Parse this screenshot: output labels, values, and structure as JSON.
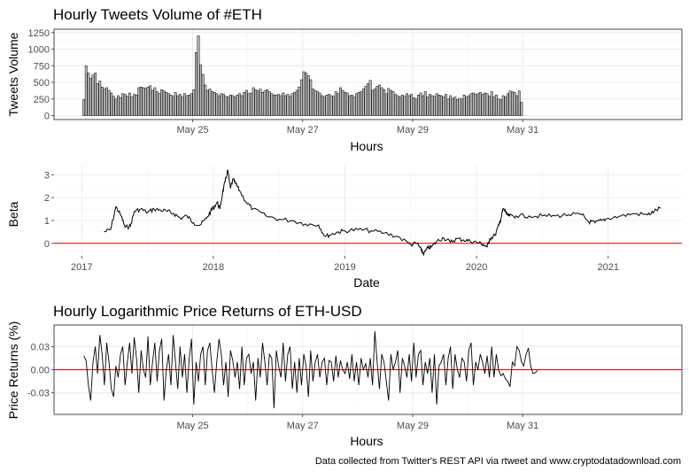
{
  "caption": "Data collected from Twitter's REST API via rtweet and www.cryptodatadownload.com",
  "colors": {
    "bar_fill": "#bebebe",
    "line": "#000000",
    "reference_line": "#cc0000",
    "panel_border": "#333333",
    "grid": "#ebebeb"
  },
  "chart_data": [
    {
      "type": "bar",
      "title": "Hourly Tweets Volume of #ETH",
      "xlabel": "Hours",
      "ylabel": "Tweets Volume",
      "x_tick_labels": [
        "May 25",
        "May 27",
        "May 29",
        "May 31"
      ],
      "x_tick_hours": [
        47.5,
        95.5,
        143.5,
        191.5
      ],
      "y_ticks": [
        0,
        250,
        500,
        750,
        1000,
        1250
      ],
      "ylim": [
        -60,
        1300
      ],
      "xlim": [
        -13,
        261
      ],
      "grid": true,
      "x_unit": "hour index (May 23 06:00 = 0)",
      "values": [
        240,
        750,
        640,
        560,
        610,
        640,
        480,
        520,
        430,
        400,
        420,
        380,
        340,
        290,
        250,
        300,
        270,
        330,
        320,
        290,
        340,
        280,
        320,
        310,
        420,
        430,
        420,
        410,
        430,
        450,
        380,
        420,
        360,
        330,
        390,
        370,
        350,
        330,
        310,
        290,
        350,
        300,
        320,
        280,
        330,
        300,
        310,
        330,
        390,
        950,
        1200,
        760,
        620,
        460,
        380,
        400,
        360,
        350,
        330,
        300,
        330,
        320,
        290,
        280,
        310,
        300,
        280,
        310,
        330,
        300,
        350,
        380,
        330,
        340,
        420,
        390,
        370,
        400,
        350,
        370,
        390,
        360,
        330,
        310,
        310,
        320,
        300,
        340,
        300,
        320,
        290,
        330,
        350,
        380,
        430,
        540,
        660,
        640,
        600,
        540,
        400,
        380,
        360,
        340,
        300,
        280,
        310,
        320,
        300,
        290,
        360,
        330,
        420,
        380,
        350,
        340,
        300,
        310,
        280,
        330,
        350,
        360,
        400,
        440,
        480,
        530,
        380,
        400,
        440,
        460,
        420,
        390,
        330,
        410,
        380,
        360,
        320,
        300,
        280,
        310,
        290,
        330,
        300,
        320,
        270,
        250,
        310,
        340,
        300,
        360,
        280,
        320,
        300,
        290,
        330,
        310,
        300,
        280,
        320,
        250,
        300,
        260,
        280,
        240,
        260,
        250,
        310,
        280,
        300,
        330,
        340,
        320,
        330,
        350,
        320,
        340,
        330,
        290,
        360,
        280,
        310,
        250,
        240,
        300,
        280,
        330,
        370,
        360,
        350,
        300,
        370,
        200
      ]
    },
    {
      "type": "line",
      "xlabel": "Date",
      "ylabel": "Beta",
      "x_tick_labels": [
        "2017",
        "2018",
        "2019",
        "2020",
        "2021"
      ],
      "x_ticks": [
        2017,
        2018,
        2019,
        2020,
        2021
      ],
      "y_ticks": [
        0,
        1,
        2,
        3
      ],
      "ylim": [
        -0.55,
        3.4
      ],
      "xlim": [
        2016.79,
        2021.56
      ],
      "reference_line_y": 0,
      "grid": true,
      "x": [
        2017.17,
        2017.22,
        2017.26,
        2017.3,
        2017.33,
        2017.37,
        2017.4,
        2017.45,
        2017.5,
        2017.55,
        2017.6,
        2017.65,
        2017.7,
        2017.75,
        2017.8,
        2017.85,
        2017.9,
        2017.95,
        2017.98,
        2018.0,
        2018.03,
        2018.05,
        2018.07,
        2018.09,
        2018.11,
        2018.13,
        2018.15,
        2018.17,
        2018.2,
        2018.25,
        2018.3,
        2018.4,
        2018.5,
        2018.6,
        2018.7,
        2018.8,
        2018.85,
        2018.9,
        2018.95,
        2019.0,
        2019.1,
        2019.2,
        2019.3,
        2019.4,
        2019.5,
        2019.55,
        2019.58,
        2019.6,
        2019.63,
        2019.66,
        2019.7,
        2019.75,
        2019.8,
        2019.85,
        2019.9,
        2019.95,
        2020.0,
        2020.05,
        2020.08,
        2020.1,
        2020.14,
        2020.17,
        2020.19,
        2020.2,
        2020.22,
        2020.23,
        2020.25,
        2020.3,
        2020.4,
        2020.5,
        2020.6,
        2020.7,
        2020.8,
        2020.85,
        2020.9,
        2020.95,
        2021.0,
        2021.1,
        2021.2,
        2021.3,
        2021.35,
        2021.4
      ],
      "y": [
        0.5,
        0.6,
        1.6,
        1.2,
        0.7,
        0.75,
        1.4,
        1.5,
        1.35,
        1.5,
        1.45,
        1.4,
        1.3,
        1.1,
        1.2,
        0.9,
        0.8,
        1.1,
        1.4,
        1.55,
        1.8,
        1.5,
        2.2,
        2.7,
        3.2,
        2.4,
        2.8,
        2.6,
        2.3,
        1.8,
        1.5,
        1.2,
        1.05,
        1.0,
        0.85,
        0.8,
        0.3,
        0.4,
        0.5,
        0.55,
        0.6,
        0.55,
        0.45,
        0.3,
        -0.05,
        0.0,
        -0.3,
        -0.45,
        -0.2,
        -0.15,
        0.1,
        0.25,
        0.05,
        0.2,
        0.15,
        0.1,
        0.05,
        -0.05,
        -0.15,
        0.2,
        0.35,
        0.8,
        1.2,
        1.5,
        1.4,
        1.25,
        1.2,
        1.2,
        1.2,
        1.2,
        1.2,
        1.25,
        1.25,
        0.95,
        0.9,
        1.0,
        1.1,
        1.2,
        1.3,
        1.25,
        1.4,
        1.55
      ]
    },
    {
      "type": "line",
      "title": "Hourly Logarithmic Price Returns of ETH-USD",
      "xlabel": "Hours",
      "ylabel": "Price Returns (%)",
      "x_tick_labels": [
        "May 25",
        "May 27",
        "May 29",
        "May 31"
      ],
      "x_tick_hours": [
        47.5,
        95.5,
        143.5,
        191.5
      ],
      "y_ticks": [
        -0.03,
        0.0,
        0.03
      ],
      "y_tick_labels": [
        "-0.03",
        "0.00",
        "0.03"
      ],
      "ylim": [
        -0.058,
        0.058
      ],
      "xlim": [
        -13,
        261
      ],
      "reference_line_y": 0,
      "grid": true,
      "x_unit": "hour index (May 23 06:00 = 0)",
      "values": [
        0.018,
        0.012,
        -0.02,
        -0.04,
        0.01,
        0.03,
        -0.005,
        0.045,
        0.02,
        -0.02,
        0.035,
        0.01,
        -0.025,
        -0.035,
        0.005,
        -0.01,
        0.02,
        0.03,
        -0.02,
        0.01,
        0.035,
        -0.005,
        0.042,
        0.015,
        -0.03,
        0.025,
        0.0,
        -0.01,
        0.043,
        -0.02,
        0.01,
        0.035,
        -0.015,
        0.025,
        0.04,
        -0.04,
        0.0,
        0.02,
        -0.02,
        0.045,
        0.01,
        -0.025,
        0.03,
        -0.01,
        0.02,
        -0.03,
        0.015,
        0.04,
        -0.045,
        0.01,
        -0.015,
        0.02,
        0.03,
        -0.02,
        0.025,
        0.035,
        0.0,
        -0.03,
        0.01,
        0.04,
        0.02,
        -0.02,
        0.01,
        -0.035,
        0.025,
        0.012,
        -0.01,
        0.01,
        -0.025,
        0.03,
        -0.02,
        0.015,
        0.02,
        -0.005,
        0.01,
        -0.04,
        0.015,
        -0.01,
        0.035,
        0.01,
        -0.02,
        0.02,
        0.015,
        -0.05,
        0.025,
        0.005,
        -0.01,
        0.035,
        -0.015,
        0.02,
        0.03,
        -0.025,
        0.01,
        -0.03,
        0.015,
        -0.02,
        0.02,
        0.005,
        -0.035,
        0.025,
        -0.015,
        0.01,
        0.02,
        -0.01,
        0.01,
        0.015,
        -0.02,
        0.012,
        0.01,
        -0.015,
        0.018,
        -0.01,
        0.012,
        0.0,
        -0.005,
        0.01,
        -0.012,
        0.02,
        -0.015,
        0.01,
        -0.02,
        0.015,
        0.0,
        0.008,
        -0.01,
        0.015,
        -0.02,
        0.05,
        0.01,
        -0.025,
        0.02,
        0.01,
        -0.015,
        -0.04,
        0.02,
        0.0,
        0.01,
        0.025,
        -0.03,
        0.015,
        0.005,
        -0.01,
        0.02,
        -0.015,
        0.035,
        -0.01,
        0.02,
        0.025,
        -0.02,
        0.01,
        -0.005,
        0.015,
        -0.03,
        0.02,
        -0.045,
        0.005,
        0.01,
        0.02,
        -0.02,
        0.015,
        0.03,
        -0.025,
        0.02,
        0.0,
        -0.01,
        0.015,
        0.01,
        -0.015,
        0.025,
        0.035,
        -0.02,
        0.01,
        0.0,
        0.02,
        0.01,
        -0.005,
        0.018,
        -0.01,
        0.03,
        -0.01,
        0.02,
        0.0,
        -0.008,
        -0.005,
        -0.012,
        -0.015,
        -0.022,
        0.01,
        0.005,
        0.03,
        0.025,
        0.01,
        0.005,
        0.02,
        0.028,
        0.005,
        -0.005,
        -0.004,
        -0.001
      ]
    }
  ]
}
